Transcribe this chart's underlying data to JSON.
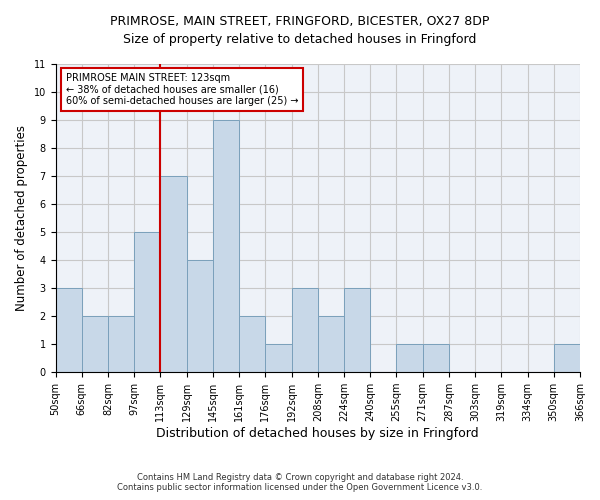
{
  "title": "PRIMROSE, MAIN STREET, FRINGFORD, BICESTER, OX27 8DP",
  "subtitle": "Size of property relative to detached houses in Fringford",
  "xlabel": "Distribution of detached houses by size in Fringford",
  "ylabel": "Number of detached properties",
  "footnote1": "Contains HM Land Registry data © Crown copyright and database right 2024.",
  "footnote2": "Contains public sector information licensed under the Open Government Licence v3.0.",
  "annotation_line1": "PRIMROSE MAIN STREET: 123sqm",
  "annotation_line2": "← 38% of detached houses are smaller (16)",
  "annotation_line3": "60% of semi-detached houses are larger (25) →",
  "bin_edges": [
    50,
    66,
    82,
    97,
    113,
    129,
    145,
    161,
    176,
    192,
    208,
    224,
    240,
    255,
    271,
    287,
    303,
    319,
    334,
    350,
    366
  ],
  "bin_labels": [
    "50sqm",
    "66sqm",
    "82sqm",
    "97sqm",
    "113sqm",
    "129sqm",
    "145sqm",
    "161sqm",
    "176sqm",
    "192sqm",
    "208sqm",
    "224sqm",
    "240sqm",
    "255sqm",
    "271sqm",
    "287sqm",
    "303sqm",
    "319sqm",
    "334sqm",
    "350sqm",
    "366sqm"
  ],
  "counts": [
    3,
    2,
    2,
    5,
    7,
    4,
    9,
    2,
    1,
    3,
    2,
    3,
    0,
    1,
    1,
    0,
    0,
    0,
    0,
    1
  ],
  "bar_color": "#c8d8e8",
  "bar_edge_color": "#7aa0bb",
  "vline_color": "#cc0000",
  "vline_x_index": 4,
  "annotation_box_color": "#cc0000",
  "ylim": [
    0,
    11
  ],
  "yticks": [
    0,
    1,
    2,
    3,
    4,
    5,
    6,
    7,
    8,
    9,
    10,
    11
  ],
  "grid_color": "#c8c8c8",
  "bg_color": "#eef2f8",
  "title_fontsize": 9,
  "subtitle_fontsize": 9,
  "ylabel_fontsize": 8.5,
  "xlabel_fontsize": 9,
  "tick_fontsize": 7,
  "annotation_fontsize": 7,
  "footnote_fontsize": 6
}
